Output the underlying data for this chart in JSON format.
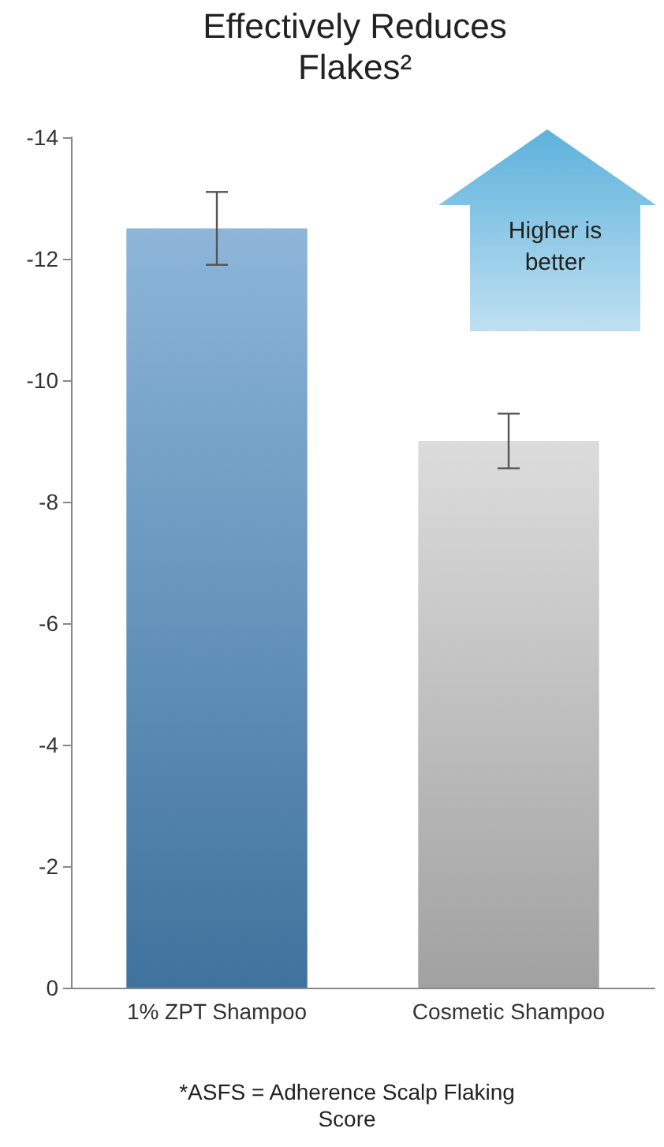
{
  "chart_data": {
    "type": "bar",
    "title": "Effectively Reduces Flakes²",
    "categories": [
      "1% ZPT Shampoo",
      "Cosmetic Shampoo"
    ],
    "values": [
      -12.5,
      -9.0
    ],
    "errors": [
      0.6,
      0.45
    ],
    "colors": [
      "#4f8fc4",
      "#c9c9c9"
    ],
    "ylim": [
      0,
      -14
    ],
    "yticks": [
      0,
      -2,
      -4,
      -6,
      -8,
      -10,
      -12,
      -14
    ],
    "grid": false,
    "annotations": [
      "Higher is better",
      "*ASFS = Adherence Scalp Flaking Score"
    ]
  }
}
